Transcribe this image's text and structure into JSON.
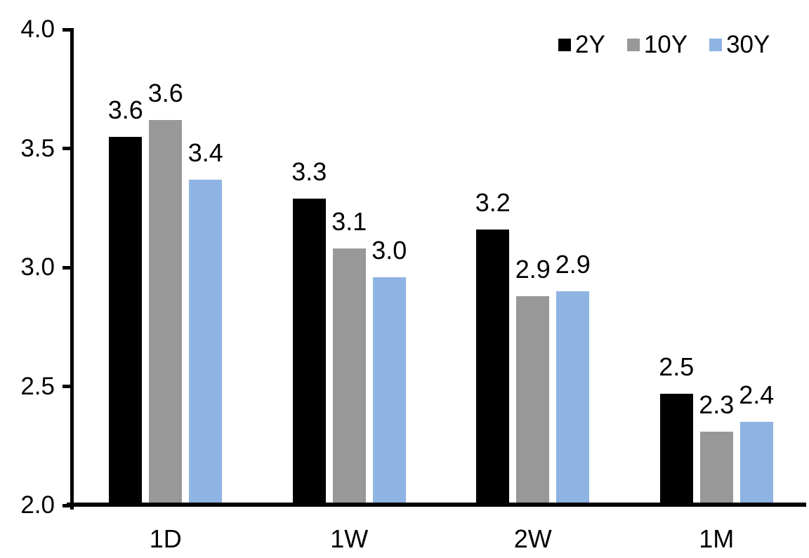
{
  "chart_data": {
    "type": "bar",
    "title": "",
    "xlabel": "",
    "ylabel": "",
    "categories": [
      "1D",
      "1W",
      "2W",
      "1M"
    ],
    "series": [
      {
        "name": "2Y",
        "color": "#000000",
        "values": [
          3.55,
          3.29,
          3.16,
          2.47
        ],
        "labels": [
          "3.6",
          "3.3",
          "3.2",
          "2.5"
        ]
      },
      {
        "name": "10Y",
        "color": "#989898",
        "values": [
          3.62,
          3.08,
          2.88,
          2.31
        ],
        "labels": [
          "3.6",
          "3.1",
          "2.9",
          "2.3"
        ]
      },
      {
        "name": "30Y",
        "color": "#8FB3E2",
        "values": [
          3.37,
          2.96,
          2.9,
          2.35
        ],
        "labels": [
          "3.4",
          "3.0",
          "2.9",
          "2.4"
        ]
      }
    ],
    "ylim": [
      2.0,
      4.0
    ],
    "yticks": [
      4.0,
      3.5,
      3.0,
      2.5,
      2.0
    ],
    "ytick_labels": [
      "4.0",
      "3.5",
      "3.0",
      "2.5",
      "2.0"
    ],
    "grid": false,
    "legend_position": "top-right",
    "background_color": "#ffffff",
    "text_color": "#000000"
  }
}
